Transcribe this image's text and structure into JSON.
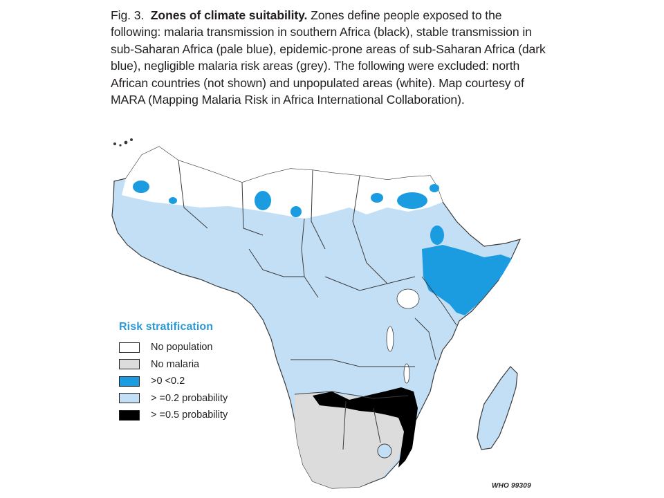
{
  "caption": {
    "fig_label": "Fig. 3.",
    "title": "Zones of climate suitability.",
    "text": "Zones define people exposed to the following: malaria transmission in southern Africa (black), stable transmission in sub-Saharan Africa (pale blue), epidemic-prone areas of sub-Saharan Africa (dark blue), negligible malaria risk areas (grey). The following were excluded: north African countries (not shown) and unpopulated areas (white). Map courtesy of MARA (Mapping Malaria Risk in Africa International Collaboration)."
  },
  "legend": {
    "title": "Risk stratification",
    "items": [
      {
        "label": "No population",
        "color": "#ffffff"
      },
      {
        "label": "No malaria",
        "color": "#dcdcdc"
      },
      {
        "label": ">0 <0.2",
        "color": "#1b9be0"
      },
      {
        "label": "> =0.2 probability",
        "color": "#c3dff6"
      },
      {
        "label": "> =0.5 probability",
        "color": "#000000"
      }
    ]
  },
  "credit": "WHO 99309",
  "colors": {
    "stable": "#c3dff6",
    "epidemic": "#1b9be0",
    "nomalaria": "#dcdcdc",
    "high": "#000000",
    "border": "#3a3a3a"
  }
}
